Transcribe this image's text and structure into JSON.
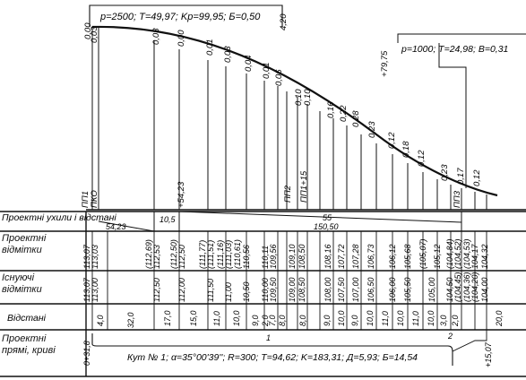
{
  "top_curve": {
    "label": "p=2500; T=49,97; Kp=99,95; Б=0,50",
    "start_value": "0,00",
    "end_value": "4,20"
  },
  "right_curve": {
    "label": "p=1000; T=24,98; B=0,31",
    "elevation": "+79,75"
  },
  "ordinates": [
    {
      "v": "0,03"
    },
    {
      "v": "0,03"
    },
    {
      "v": "0,00"
    },
    {
      "v": "0,01"
    },
    {
      "v": "0,03"
    },
    {
      "v": "0,04"
    },
    {
      "v": "0,01"
    },
    {
      "v": "0,06"
    },
    {
      "v": "0,10"
    },
    {
      "v": "0,10"
    },
    {
      "v": "0,16"
    },
    {
      "v": "0,22"
    },
    {
      "v": "0,28"
    },
    {
      "v": "0,23"
    },
    {
      "v": "0,12"
    },
    {
      "v": "0,18"
    },
    {
      "v": "0,12"
    },
    {
      "v": "0,23"
    },
    {
      "v": "0,17"
    },
    {
      "v": "0,12"
    }
  ],
  "point_labels": {
    "pp1": "ПП1",
    "pko": "ПКО",
    "pk_5423": "+54,23",
    "pp2": "ПП2",
    "pp1_15": "ПП1+15",
    "pp3": "ПП3"
  },
  "rows": {
    "grades_label": "Проектні ухили і відстані",
    "design_label": "Проектні відмітки",
    "existing_label": "Існуючі відмітки",
    "distances_label": "Відстані",
    "lines_label": "Проектні прямі, криві"
  },
  "grades": {
    "seg1_len": "54,23",
    "seg2_len": "10,5",
    "seg3_grade": "55",
    "seg3_len": "150,50"
  },
  "design_elev": [
    "113,07",
    "113,03",
    "(112,69)",
    "112,53",
    "(112,50)",
    "112,50",
    "(111,77)",
    "(111,51)",
    "(111,16)",
    "(111,03)",
    "(110,61)",
    "110,56",
    "110,11",
    "109,56",
    "109,10",
    "108,50",
    "108,16",
    "107,72",
    "107,28",
    "106,73",
    "106,12",
    "105,68",
    "(105,07)",
    "105,12",
    "(104,84)",
    "(104,52)",
    "(104,53)",
    "104,17",
    "104,32"
  ],
  "existing_elev": [
    "113,07",
    "113,00",
    "112,50",
    "112,00",
    "111,50",
    "11,00",
    "10,50",
    "110,00",
    "109,50",
    "109,00",
    "108,50",
    "108,00",
    "107,50",
    "107,00",
    "106,50",
    "106,00",
    "105,50",
    "105,00",
    "104,50",
    "(104,45)",
    "(104,36)",
    "(104,20)",
    "104,00"
  ],
  "distances": [
    "4,0",
    "32,0",
    "17,0",
    "15,0",
    "11,0",
    "10,0",
    "9,0",
    "2,0",
    "7,0",
    "8,0",
    "8,0",
    "9,0",
    "10,0",
    "9,0",
    "10,0",
    "11,0",
    "10,0",
    "11,0",
    "10,0",
    "3,0",
    "2,0",
    "20,0"
  ],
  "curve_info": {
    "start": "0+31,8",
    "end": "+15,07",
    "marker1": "1",
    "marker2": "2",
    "text": "Кут № 1; α=35°00'39''; R=300; T=94,62; K=183,31; Д=5,93; Б=14,54"
  }
}
